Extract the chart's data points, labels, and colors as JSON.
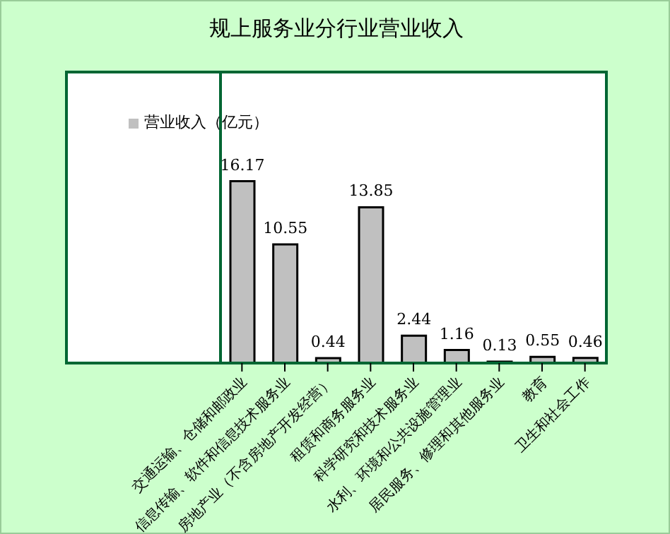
{
  "chart_data": {
    "type": "bar",
    "title": "规上服务业分行业营业收入",
    "categories": [
      "交通运输、仓储和邮政业",
      "信息传输、软件和信息技术服务业",
      "房地产业（不含房地产开发经营）",
      "租赁和商务服务业",
      "科学研究和技术服务业",
      "水利、环境和公共设施管理业",
      "居民服务、修理和其他服务业",
      "教育",
      "卫生和社会工作"
    ],
    "series": [
      {
        "name": "营业收入（亿元）",
        "color": "#c0c0c0",
        "values": [
          16.17,
          10.55,
          0.44,
          13.85,
          2.44,
          1.16,
          0.13,
          0.55,
          0.46
        ]
      }
    ],
    "data_labels": true,
    "legend": "top left",
    "tick_labels": "x"
  }
}
